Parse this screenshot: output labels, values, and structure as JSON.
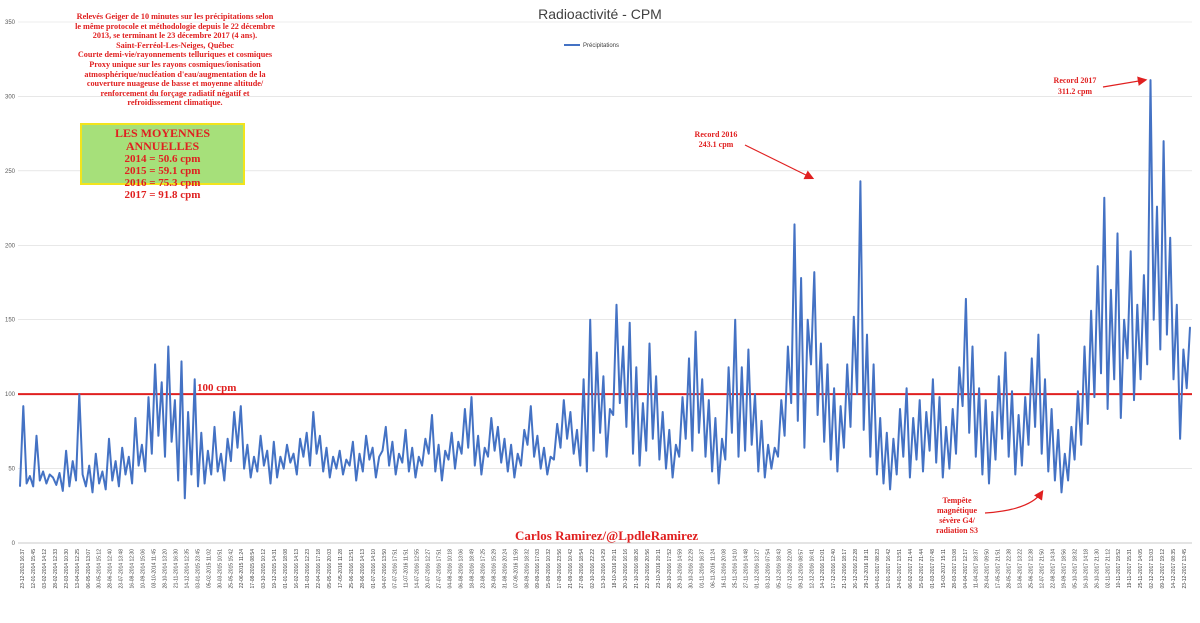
{
  "chart_data": {
    "type": "line",
    "title": "Radioactivité - CPM",
    "legend": [
      "Précipitations"
    ],
    "legend_position": "top-center",
    "ylim": [
      0,
      350
    ],
    "yticks": [
      0,
      50,
      100,
      150,
      200,
      250,
      300,
      350
    ],
    "grid": true,
    "reference_line": {
      "value": 100,
      "label": "100 cpm",
      "color": "#e02020"
    },
    "series": [
      {
        "name": "Précipitations",
        "color": "#4472c4",
        "values": [
          38,
          92,
          40,
          45,
          38,
          72,
          42,
          48,
          40,
          46,
          44,
          39,
          47,
          35,
          62,
          38,
          55,
          42,
          100,
          46,
          38,
          52,
          34,
          60,
          40,
          48,
          36,
          70,
          42,
          55,
          38,
          64,
          46,
          58,
          40,
          84,
          52,
          66,
          48,
          98,
          60,
          120,
          72,
          108,
          58,
          132,
          68,
          96,
          42,
          122,
          30,
          88,
          46,
          110,
          38,
          74,
          40,
          62,
          46,
          78,
          48,
          60,
          42,
          70,
          55,
          88,
          64,
          92,
          50,
          66,
          44,
          58,
          48,
          72,
          52,
          62,
          40,
          68,
          44,
          58,
          50,
          66,
          54,
          60,
          46,
          70,
          58,
          74,
          52,
          88,
          60,
          72,
          48,
          64,
          44,
          58,
          50,
          62,
          46,
          56,
          52,
          68,
          42,
          60,
          48,
          72,
          56,
          64,
          44,
          58,
          62,
          78,
          52,
          68,
          46,
          60,
          54,
          76,
          48,
          64,
          44,
          58,
          52,
          70,
          60,
          86,
          48,
          66,
          42,
          62,
          56,
          74,
          50,
          68,
          60,
          90,
          64,
          98,
          52,
          72,
          46,
          64,
          58,
          84,
          62,
          78,
          54,
          70,
          48,
          66,
          44,
          60,
          52,
          76,
          66,
          92,
          58,
          72,
          50,
          64,
          46,
          58,
          56,
          80,
          64,
          96,
          70,
          88,
          60,
          76,
          52,
          110,
          48,
          150,
          62,
          128,
          74,
          112,
          58,
          90,
          86,
          160,
          94,
          132,
          78,
          148,
          60,
          118,
          52,
          94,
          62,
          134,
          70,
          112,
          56,
          88,
          50,
          76,
          44,
          66,
          58,
          98,
          70,
          124,
          62,
          142,
          74,
          110,
          58,
          96,
          48,
          84,
          40,
          70,
          56,
          118,
          74,
          150,
          58,
          118,
          62,
          130,
          66,
          100,
          48,
          82,
          44,
          66,
          50,
          64,
          58,
          96,
          72,
          132,
          94,
          214,
          82,
          178,
          64,
          150,
          120,
          182,
          86,
          134,
          68,
          120,
          56,
          104,
          48,
          92,
          64,
          120,
          78,
          152,
          100,
          243,
          76,
          140,
          58,
          120,
          46,
          84,
          40,
          74,
          36,
          70,
          46,
          90,
          58,
          104,
          44,
          84,
          56,
          96,
          48,
          88,
          62,
          110,
          54,
          98,
          44,
          78,
          50,
          90,
          60,
          118,
          92,
          164,
          74,
          132,
          58,
          104,
          46,
          96,
          40,
          88,
          56,
          112,
          70,
          128,
          58,
          102,
          46,
          86,
          52,
          98,
          66,
          124,
          78,
          140,
          60,
          110,
          48,
          90,
          42,
          76,
          34,
          60,
          42,
          78,
          56,
          102,
          66,
          132,
          80,
          156,
          98,
          186,
          114,
          232,
          90,
          170,
          110,
          208,
          84,
          150,
          124,
          196,
          96,
          160,
          110,
          180,
          120,
          311,
          150,
          226,
          130,
          270,
          140,
          205,
          110,
          160,
          70,
          130,
          104,
          145
        ]
      }
    ],
    "xticks": [
      "23-12-2013 16:37",
      "12-01-2014 15:45",
      "03-02-2014 14:12",
      "28-02-2014 12:33",
      "23-03-2014 10:30",
      "13-04-2014 12:25",
      "06-05-2014 13:07",
      "30-05-2014 15:12",
      "28-06-2014 12:40",
      "23-07-2014 13:48",
      "16-08-2014 12:30",
      "10-09-2014 15:06",
      "03-10-2014 11:45",
      "28-10-2014 13:20",
      "21-11-2014 16:30",
      "14-12-2014 12:35",
      "03-01-2015 23:45",
      "05-02-2015 11:02",
      "30-03-2015 10:51",
      "25-05-2015 15:42",
      "22-06-2015 11:24",
      "17-08-2015 08:54",
      "03-10-2015 10:12",
      "19-12-2015 14:31",
      "01-01-2016 18:08",
      "16-02-2016 14:13",
      "31-03-2016 12:23",
      "22-04-2016 17:18",
      "05-05-2016 20:03",
      "17-05-2016 11:28",
      "25-06-2016 12:51",
      "28-06-2016 14:13",
      "01-07-2016 14:10",
      "04-07-2016 13:50",
      "07-07-2016 17:51",
      "11-07-2016 11:51",
      "14-07-2016 12:55",
      "20-07-2016 12:27",
      "27-07-2016 17:51",
      "04-08-2016 10:18",
      "06-08-2016 13:06",
      "18-08-2016 18:49",
      "23-08-2016 17:25",
      "29-08-2016 15:29",
      "31-08-2016 20:24",
      "07-09-2016 11:59",
      "08-09-2016 18:32",
      "09-09-2016 17:03",
      "15-09-2016 10:32",
      "17-09-2016 23:56",
      "21-09-2016 10:42",
      "27-09-2016 18:54",
      "02-10-2016 22:22",
      "13-10-2016 14:29",
      "18-10-2016 20:11",
      "20-10-2016 16:16",
      "21-10-2016 08:26",
      "22-10-2016 20:56",
      "23-10-2016 20:11",
      "28-10-2016 17:52",
      "29-10-2016 14:59",
      "30-10-2016 22:29",
      "01-11-2016 16:37",
      "06-11-2016 11:24",
      "16-11-2016 20:08",
      "25-11-2016 14:10",
      "27-11-2016 14:48",
      "01-12-2016 13:27",
      "03-12-2016 07:54",
      "05-12-2016 18:43",
      "07-12-2016 22:00",
      "09-12-2016 08:57",
      "12-12-2016 16:41",
      "14-12-2016 12:01",
      "17-12-2016 12:40",
      "21-12-2016 18:17",
      "26-12-2016 22:28",
      "29-12-2016 18:11",
      "04-01-2017 08:23",
      "12-01-2017 16:42",
      "24-01-2017 13:51",
      "06-02-2017 21:44",
      "15-02-2017 21:44",
      "01-03-2017 07:48",
      "15-03-2017 15:11",
      "28-03-2017 13:08",
      "04-04-2017 12:17",
      "11-04-2017 18:37",
      "29-04-2017 09:50",
      "17-05-2017 21:51",
      "28-05-2017 22:38",
      "13-06-2017 13:22",
      "25-06-2017 12:38",
      "12-07-2017 21:50",
      "22-08-2017 14:34",
      "19-09-2017 18:56",
      "05-10-2017 18:32",
      "16-10-2017 14:18",
      "26-10-2017 21:30",
      "02-11-2017 21:12",
      "10-11-2017 19:52",
      "19-11-2017 15:31",
      "25-11-2017 14:05",
      "02-12-2017 13:03",
      "09-12-2017 19:12",
      "14-12-2017 08:35",
      "23-12-2017 13:45"
    ]
  },
  "notes": {
    "lines": [
      "Relevés Geiger de 10 minutes sur les précipitations selon",
      "le même protocole et méthodologie depuis le 22 décembre",
      "2013, se terminant le 23 décembre 2017 (4 ans).",
      "Saint-Ferréol-Les-Neiges, Québec",
      "Courte demi-vie/rayonnements telluriques et cosmiques",
      "Proxy unique sur les rayons cosmiques/ionisation",
      "atmosphérique/nucléation d'eau/augmentation de la",
      "couverture nuageuse de basse et moyenne altitude/",
      "renforcement du forçage radiatif négatif et",
      "refroidissement climatique."
    ]
  },
  "averages": {
    "heading": "LES MOYENNES ANNUELLES",
    "rows": [
      "2014 = 50.6 cpm",
      "2015 = 59.1 cpm",
      "2016 = 75.3 cpm",
      "2017 = 91.8 cpm"
    ]
  },
  "annotations": {
    "record_2016": [
      "Record 2016",
      "243.1 cpm"
    ],
    "record_2017": [
      "Record 2017",
      "311.2 cpm"
    ],
    "storm": [
      "Tempête",
      "magnétique",
      "sévère G4/",
      "radiation S3"
    ]
  },
  "signature": "Carlos Ramirez/@LpdleRamirez"
}
